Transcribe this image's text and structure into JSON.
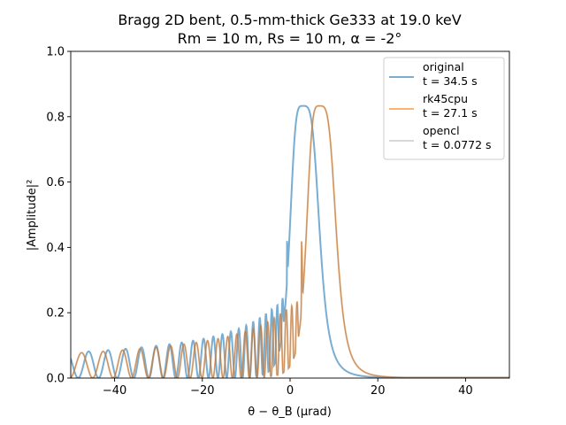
{
  "chart_data": {
    "type": "line",
    "title": [
      "Bragg 2D bent, 0.5-mm-thick Ge333 at 19.0 keV",
      "Rm = 10 m, Rs = 10 m, α = -2°"
    ],
    "xlabel": "θ − θ_B (µrad)",
    "ylabel": "|Amplitude|²",
    "xlim": [
      -50,
      50
    ],
    "ylim": [
      0.0,
      1.0
    ],
    "xticks": [
      -40,
      -20,
      0,
      20,
      40
    ],
    "xtick_labels": [
      "−40",
      "−20",
      "0",
      "20",
      "40"
    ],
    "yticks": [
      0.0,
      0.2,
      0.4,
      0.6,
      0.8,
      1.0
    ],
    "ytick_labels": [
      "0.0",
      "0.2",
      "0.4",
      "0.6",
      "0.8",
      "1.0"
    ],
    "grid": false,
    "legend_position": "top-right",
    "series": [
      {
        "name": "original",
        "timing": "t = 34.5 s",
        "color": "#1f77b4",
        "opacity": 0.6,
        "peak_center": 2.9,
        "peak_height": 0.833,
        "fringe_edge": 0.5,
        "points": [
          [
            -50,
            0.002
          ],
          [
            -30,
            0.006
          ],
          [
            -20,
            0.012
          ],
          [
            -10,
            0.04
          ],
          [
            -5,
            0.1
          ],
          [
            -2,
            0.25
          ],
          [
            0,
            0.42
          ],
          [
            1,
            0.6
          ],
          [
            2,
            0.8
          ],
          [
            2.9,
            0.833
          ],
          [
            4,
            0.82
          ],
          [
            6,
            0.72
          ],
          [
            8,
            0.5
          ],
          [
            10,
            0.26
          ],
          [
            12,
            0.1
          ],
          [
            15,
            0.04
          ],
          [
            20,
            0.015
          ],
          [
            30,
            0.006
          ],
          [
            50,
            0.002
          ]
        ]
      },
      {
        "name": "rk45cpu",
        "timing": "t = 27.1 s",
        "color": "#ff7f0e",
        "opacity": 0.6,
        "peak_center": 6.7,
        "peak_height": 0.833,
        "fringe_edge": 3.8,
        "points": [
          [
            -50,
            0.002
          ],
          [
            -30,
            0.005
          ],
          [
            -20,
            0.01
          ],
          [
            -10,
            0.03
          ],
          [
            -5,
            0.06
          ],
          [
            0,
            0.2
          ],
          [
            2,
            0.3
          ],
          [
            3,
            0.42
          ],
          [
            4,
            0.6
          ],
          [
            5,
            0.8
          ],
          [
            6.7,
            0.833
          ],
          [
            8,
            0.82
          ],
          [
            10,
            0.72
          ],
          [
            12,
            0.5
          ],
          [
            14,
            0.26
          ],
          [
            16,
            0.1
          ],
          [
            20,
            0.04
          ],
          [
            30,
            0.01
          ],
          [
            50,
            0.003
          ]
        ]
      },
      {
        "name": "opencl",
        "timing": "t = 0.0772 s",
        "color": "#7f7f7f",
        "opacity": 0.6,
        "peak_center": 6.7,
        "peak_height": 0.833,
        "fringe_edge": 3.8,
        "points": [
          [
            -50,
            0.002
          ],
          [
            -30,
            0.005
          ],
          [
            -20,
            0.01
          ],
          [
            -10,
            0.03
          ],
          [
            -5,
            0.06
          ],
          [
            0,
            0.2
          ],
          [
            2,
            0.3
          ],
          [
            3,
            0.42
          ],
          [
            4,
            0.6
          ],
          [
            5,
            0.8
          ],
          [
            6.7,
            0.833
          ],
          [
            8,
            0.82
          ],
          [
            10,
            0.72
          ],
          [
            12,
            0.5
          ],
          [
            14,
            0.26
          ],
          [
            16,
            0.1
          ],
          [
            20,
            0.04
          ],
          [
            30,
            0.01
          ],
          [
            50,
            0.003
          ]
        ]
      }
    ]
  }
}
